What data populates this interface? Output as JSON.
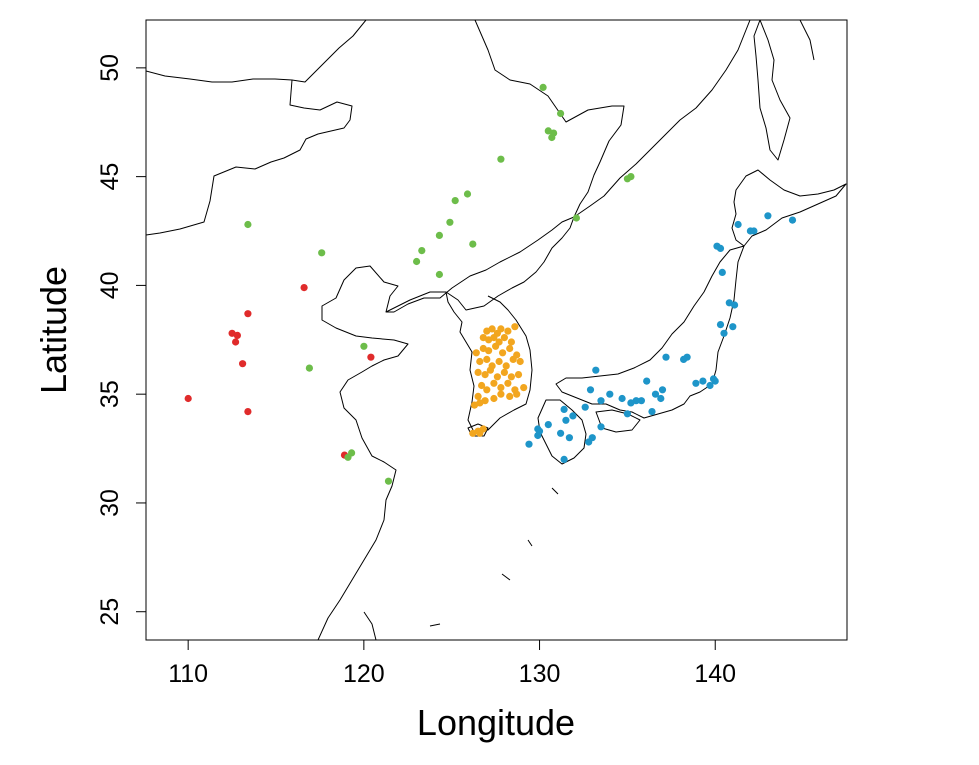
{
  "chart_data": {
    "type": "scatter",
    "xlabel": "Longitude",
    "ylabel": "Latitude",
    "xlim": [
      107.6,
      147.5
    ],
    "ylim": [
      23.7,
      52.2
    ],
    "x_ticks": [
      110,
      120,
      130,
      140
    ],
    "y_ticks": [
      25,
      30,
      35,
      40,
      45,
      50
    ],
    "grid": false,
    "legend": "none",
    "basemap": "coastlines and national borders of East Asia",
    "series": [
      {
        "color": "#e02b2b",
        "points": [
          [
            110.0,
            34.8
          ],
          [
            113.4,
            38.7
          ],
          [
            112.5,
            37.8
          ],
          [
            112.8,
            37.7
          ],
          [
            112.7,
            37.4
          ],
          [
            113.1,
            36.4
          ],
          [
            113.4,
            34.2
          ],
          [
            116.6,
            39.9
          ],
          [
            118.9,
            32.2
          ],
          [
            120.4,
            36.7
          ]
        ]
      },
      {
        "color": "#6dbd4a",
        "points": [
          [
            113.4,
            42.8
          ],
          [
            117.6,
            41.5
          ],
          [
            116.9,
            36.2
          ],
          [
            120.0,
            37.2
          ],
          [
            119.1,
            32.1
          ],
          [
            119.3,
            32.3
          ],
          [
            121.4,
            31.0
          ],
          [
            123.0,
            41.1
          ],
          [
            123.3,
            41.6
          ],
          [
            124.3,
            40.5
          ],
          [
            124.3,
            42.3
          ],
          [
            124.9,
            42.9
          ],
          [
            125.2,
            43.9
          ],
          [
            125.9,
            44.2
          ],
          [
            126.2,
            41.9
          ],
          [
            127.8,
            45.8
          ],
          [
            130.2,
            49.1
          ],
          [
            131.2,
            47.9
          ],
          [
            130.5,
            47.1
          ],
          [
            130.7,
            46.8
          ],
          [
            130.8,
            47.0
          ],
          [
            135.0,
            44.9
          ],
          [
            135.2,
            45.0
          ],
          [
            132.1,
            43.1
          ]
        ]
      },
      {
        "color": "#f2a61f",
        "points": [
          [
            127.0,
            37.9
          ],
          [
            127.3,
            38.0
          ],
          [
            127.6,
            37.8
          ],
          [
            127.8,
            38.0
          ],
          [
            128.2,
            37.9
          ],
          [
            128.6,
            38.1
          ],
          [
            126.8,
            37.6
          ],
          [
            127.1,
            37.5
          ],
          [
            127.4,
            37.6
          ],
          [
            127.7,
            37.4
          ],
          [
            128.0,
            37.6
          ],
          [
            128.4,
            37.4
          ],
          [
            126.4,
            36.9
          ],
          [
            126.8,
            37.1
          ],
          [
            127.1,
            37.0
          ],
          [
            127.5,
            37.2
          ],
          [
            127.9,
            36.9
          ],
          [
            128.3,
            37.1
          ],
          [
            128.7,
            36.8
          ],
          [
            126.6,
            36.5
          ],
          [
            127.0,
            36.6
          ],
          [
            127.3,
            36.3
          ],
          [
            127.7,
            36.5
          ],
          [
            128.1,
            36.3
          ],
          [
            128.5,
            36.6
          ],
          [
            128.9,
            36.5
          ],
          [
            126.5,
            36.0
          ],
          [
            126.9,
            35.9
          ],
          [
            127.2,
            36.1
          ],
          [
            127.6,
            35.8
          ],
          [
            128.0,
            36.0
          ],
          [
            128.4,
            35.8
          ],
          [
            128.8,
            35.9
          ],
          [
            126.7,
            35.4
          ],
          [
            127.0,
            35.2
          ],
          [
            127.4,
            35.5
          ],
          [
            127.8,
            35.3
          ],
          [
            128.2,
            35.5
          ],
          [
            128.6,
            35.2
          ],
          [
            129.1,
            35.3
          ],
          [
            126.5,
            34.9
          ],
          [
            126.9,
            34.7
          ],
          [
            127.4,
            34.8
          ],
          [
            127.8,
            35.0
          ],
          [
            128.3,
            34.9
          ],
          [
            128.7,
            35.0
          ],
          [
            126.3,
            34.5
          ],
          [
            126.6,
            34.6
          ],
          [
            126.2,
            33.2
          ],
          [
            126.5,
            33.3
          ],
          [
            126.8,
            33.4
          ],
          [
            126.6,
            33.2
          ]
        ]
      },
      {
        "color": "#1e95c9",
        "points": [
          [
            140.1,
            41.8
          ],
          [
            140.3,
            41.7
          ],
          [
            142.0,
            42.5
          ],
          [
            142.2,
            42.5
          ],
          [
            143.0,
            43.2
          ],
          [
            144.4,
            43.0
          ],
          [
            140.4,
            40.6
          ],
          [
            140.8,
            39.2
          ],
          [
            141.1,
            39.1
          ],
          [
            141.0,
            38.1
          ],
          [
            140.3,
            38.2
          ],
          [
            139.9,
            35.7
          ],
          [
            140.0,
            35.6
          ],
          [
            139.3,
            35.6
          ],
          [
            138.4,
            36.7
          ],
          [
            138.2,
            36.6
          ],
          [
            137.2,
            36.7
          ],
          [
            137.0,
            35.2
          ],
          [
            136.6,
            35.0
          ],
          [
            136.9,
            34.8
          ],
          [
            136.1,
            35.6
          ],
          [
            135.8,
            34.7
          ],
          [
            135.5,
            34.7
          ],
          [
            135.2,
            34.6
          ],
          [
            134.7,
            34.8
          ],
          [
            134.0,
            35.0
          ],
          [
            133.2,
            36.1
          ],
          [
            132.9,
            35.2
          ],
          [
            133.5,
            34.7
          ],
          [
            131.9,
            34.0
          ],
          [
            132.6,
            34.4
          ],
          [
            131.5,
            33.8
          ],
          [
            131.4,
            34.3
          ],
          [
            130.5,
            33.6
          ],
          [
            130.0,
            33.3
          ],
          [
            129.9,
            33.1
          ],
          [
            129.4,
            32.7
          ],
          [
            131.2,
            33.2
          ],
          [
            131.7,
            33.0
          ],
          [
            132.8,
            32.8
          ],
          [
            133.0,
            33.0
          ],
          [
            131.4,
            32.0
          ],
          [
            135.0,
            34.1
          ],
          [
            136.4,
            34.2
          ],
          [
            138.9,
            35.5
          ],
          [
            139.7,
            35.4
          ],
          [
            140.5,
            37.8
          ],
          [
            141.3,
            42.8
          ],
          [
            133.5,
            33.5
          ],
          [
            129.9,
            33.4
          ]
        ]
      }
    ]
  }
}
